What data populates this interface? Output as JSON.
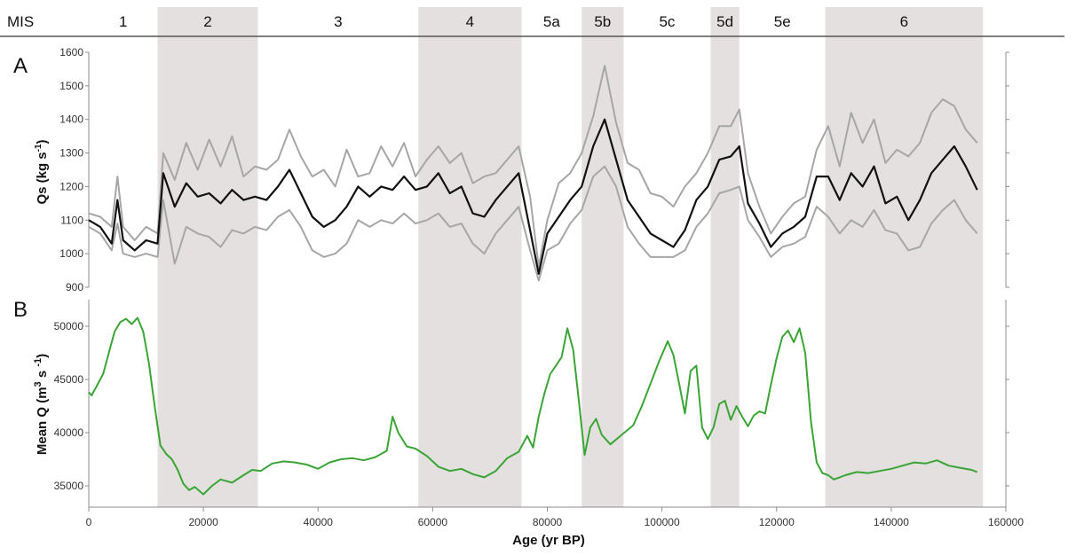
{
  "header": {
    "mis_label": "MIS"
  },
  "mis_stages": [
    {
      "label": "1",
      "start": 0,
      "end": 12000,
      "shaded": false
    },
    {
      "label": "2",
      "start": 12000,
      "end": 29500,
      "shaded": true
    },
    {
      "label": "3",
      "start": 29500,
      "end": 57500,
      "shaded": false
    },
    {
      "label": "4",
      "start": 57500,
      "end": 75500,
      "shaded": true
    },
    {
      "label": "5a",
      "start": 75500,
      "end": 86000,
      "shaded": false
    },
    {
      "label": "5b",
      "start": 86000,
      "end": 93300,
      "shaded": true
    },
    {
      "label": "5c",
      "start": 93300,
      "end": 108500,
      "shaded": false
    },
    {
      "label": "5d",
      "start": 108500,
      "end": 113500,
      "shaded": true
    },
    {
      "label": "5e",
      "start": 113500,
      "end": 128500,
      "shaded": false
    },
    {
      "label": "6",
      "start": 128500,
      "end": 156000,
      "shaded": true
    }
  ],
  "colors": {
    "shade": "#e4e0e0",
    "qs_mean": "#111111",
    "qs_bounds": "#a6a6a6",
    "mean_q": "#3aa535",
    "axis": "#8c8c8c",
    "header_rule": "#555555"
  },
  "chart_data": [
    {
      "panel": "A",
      "type": "line",
      "ylabel": "Qs (kg s-1)",
      "ylabel_main": "Qs (kg s",
      "ylabel_sup": "-1",
      "ylabel_end": ")",
      "ylim": [
        900,
        1600
      ],
      "yticks": [
        900,
        1000,
        1100,
        1200,
        1300,
        1400,
        1500,
        1600
      ],
      "x": [
        0,
        2000,
        4000,
        5000,
        6000,
        8000,
        10000,
        12000,
        13000,
        15000,
        17000,
        19000,
        21000,
        23000,
        25000,
        27000,
        29000,
        31000,
        33000,
        35000,
        37000,
        39000,
        41000,
        43000,
        45000,
        47000,
        49000,
        51000,
        53000,
        55000,
        57000,
        59000,
        61000,
        63000,
        65000,
        67000,
        69000,
        71000,
        73000,
        75000,
        77000,
        78500,
        80000,
        82000,
        84000,
        86000,
        88000,
        90000,
        92000,
        94000,
        96000,
        98000,
        100000,
        102000,
        104000,
        106000,
        108000,
        110000,
        112000,
        113500,
        115000,
        117000,
        119000,
        121000,
        123000,
        125000,
        127000,
        129000,
        131000,
        133000,
        135000,
        137000,
        139000,
        141000,
        143000,
        145000,
        147000,
        149000,
        151000,
        153000,
        155000
      ],
      "series": [
        {
          "role": "upper",
          "values": [
            1120,
            1110,
            1080,
            1230,
            1080,
            1040,
            1080,
            1060,
            1300,
            1220,
            1330,
            1250,
            1340,
            1260,
            1350,
            1230,
            1260,
            1250,
            1280,
            1370,
            1290,
            1230,
            1250,
            1200,
            1310,
            1230,
            1240,
            1320,
            1260,
            1330,
            1230,
            1280,
            1320,
            1270,
            1300,
            1210,
            1230,
            1240,
            1280,
            1320,
            1170,
            960,
            1100,
            1210,
            1240,
            1300,
            1410,
            1560,
            1390,
            1270,
            1250,
            1180,
            1170,
            1140,
            1200,
            1240,
            1300,
            1380,
            1380,
            1430,
            1240,
            1140,
            1060,
            1110,
            1150,
            1170,
            1310,
            1380,
            1260,
            1420,
            1330,
            1400,
            1270,
            1310,
            1290,
            1330,
            1420,
            1460,
            1440,
            1370,
            1330
          ]
        },
        {
          "role": "mean",
          "values": [
            1100,
            1080,
            1030,
            1160,
            1040,
            1010,
            1040,
            1030,
            1240,
            1140,
            1210,
            1170,
            1180,
            1150,
            1190,
            1160,
            1170,
            1160,
            1200,
            1250,
            1180,
            1110,
            1080,
            1100,
            1140,
            1200,
            1170,
            1200,
            1190,
            1230,
            1190,
            1200,
            1240,
            1180,
            1200,
            1120,
            1110,
            1160,
            1200,
            1240,
            1070,
            940,
            1060,
            1110,
            1160,
            1200,
            1320,
            1400,
            1280,
            1160,
            1110,
            1060,
            1040,
            1020,
            1070,
            1160,
            1200,
            1280,
            1290,
            1320,
            1150,
            1090,
            1020,
            1060,
            1080,
            1110,
            1230,
            1230,
            1160,
            1240,
            1200,
            1260,
            1150,
            1170,
            1100,
            1160,
            1240,
            1280,
            1320,
            1260,
            1190
          ]
        },
        {
          "role": "lower",
          "values": [
            1080,
            1060,
            1010,
            1090,
            1000,
            990,
            1000,
            990,
            1160,
            970,
            1080,
            1060,
            1050,
            1020,
            1070,
            1060,
            1080,
            1070,
            1110,
            1130,
            1080,
            1010,
            990,
            1000,
            1030,
            1100,
            1080,
            1100,
            1090,
            1120,
            1090,
            1100,
            1120,
            1080,
            1090,
            1030,
            1000,
            1060,
            1100,
            1140,
            1010,
            920,
            1010,
            1030,
            1090,
            1130,
            1230,
            1260,
            1200,
            1080,
            1030,
            990,
            990,
            990,
            1010,
            1080,
            1120,
            1180,
            1190,
            1200,
            1100,
            1050,
            990,
            1020,
            1030,
            1050,
            1140,
            1110,
            1060,
            1100,
            1080,
            1130,
            1070,
            1060,
            1010,
            1020,
            1090,
            1130,
            1160,
            1100,
            1060
          ]
        }
      ]
    },
    {
      "panel": "B",
      "type": "line",
      "xlabel": "Age (yr BP)",
      "ylabel": "Mean Q  (m3 s -1)",
      "ylabel_main": "Mean Q  (m",
      "ylabel_mid": "3",
      "ylabel_mid2": " s ",
      "ylabel_sup": "-1",
      "ylabel_end": ")",
      "xlim": [
        0,
        160000
      ],
      "xticks": [
        0,
        20000,
        40000,
        60000,
        80000,
        100000,
        120000,
        140000,
        160000
      ],
      "ylim": [
        33000,
        52500
      ],
      "yticks": [
        35000,
        40000,
        45000,
        50000
      ],
      "x": [
        0,
        500,
        1500,
        2500,
        3500,
        4500,
        5500,
        6500,
        7500,
        8500,
        9500,
        10500,
        11500,
        12500,
        13500,
        14500,
        15500,
        16500,
        17500,
        18500,
        20000,
        21500,
        23000,
        25000,
        27000,
        28500,
        30000,
        32000,
        34000,
        36000,
        38000,
        40000,
        42000,
        44000,
        46000,
        48000,
        50000,
        52000,
        53000,
        54000,
        55500,
        57000,
        59000,
        61000,
        63000,
        65000,
        67000,
        69000,
        71000,
        73000,
        75000,
        76500,
        77500,
        78500,
        79500,
        80500,
        81500,
        82500,
        83500,
        84500,
        85500,
        86500,
        87500,
        88500,
        89500,
        91000,
        93000,
        95000,
        96500,
        98000,
        99500,
        101000,
        102000,
        103000,
        104000,
        105000,
        106000,
        107000,
        108000,
        109000,
        110000,
        111000,
        112000,
        113000,
        114000,
        115000,
        116000,
        117000,
        118000,
        119000,
        120000,
        121000,
        122000,
        123000,
        124000,
        125000,
        126000,
        127000,
        128000,
        129000,
        130000,
        131000,
        132000,
        134000,
        136000,
        138000,
        140000,
        142000,
        144000,
        146000,
        148000,
        150000,
        152000,
        154000,
        155000
      ],
      "series": [
        {
          "role": "mean_q",
          "values": [
            43800,
            43500,
            44500,
            45500,
            47500,
            49500,
            50400,
            50700,
            50200,
            50800,
            49500,
            46500,
            42500,
            38800,
            38000,
            37500,
            36500,
            35200,
            34600,
            34900,
            34200,
            35000,
            35600,
            35300,
            36000,
            36500,
            36400,
            37100,
            37300,
            37200,
            37000,
            36600,
            37200,
            37500,
            37600,
            37400,
            37700,
            38300,
            41500,
            40000,
            38700,
            38500,
            37800,
            36800,
            36400,
            36600,
            36100,
            35800,
            36400,
            37600,
            38200,
            39700,
            38600,
            41500,
            43700,
            45500,
            46300,
            47100,
            49800,
            47800,
            43000,
            37900,
            40500,
            41300,
            39800,
            38900,
            39800,
            40700,
            42500,
            44600,
            46700,
            48600,
            47300,
            44600,
            41800,
            45800,
            46300,
            40500,
            39400,
            40500,
            42700,
            43000,
            41200,
            42500,
            41500,
            40600,
            41600,
            42000,
            41800,
            44500,
            47000,
            49000,
            49600,
            48500,
            49800,
            47500,
            41000,
            37200,
            36200,
            36000,
            35600,
            35800,
            36000,
            36300,
            36200,
            36400,
            36600,
            36900,
            37200,
            37100,
            37400,
            36900,
            36700,
            36500,
            36300
          ]
        }
      ]
    }
  ]
}
